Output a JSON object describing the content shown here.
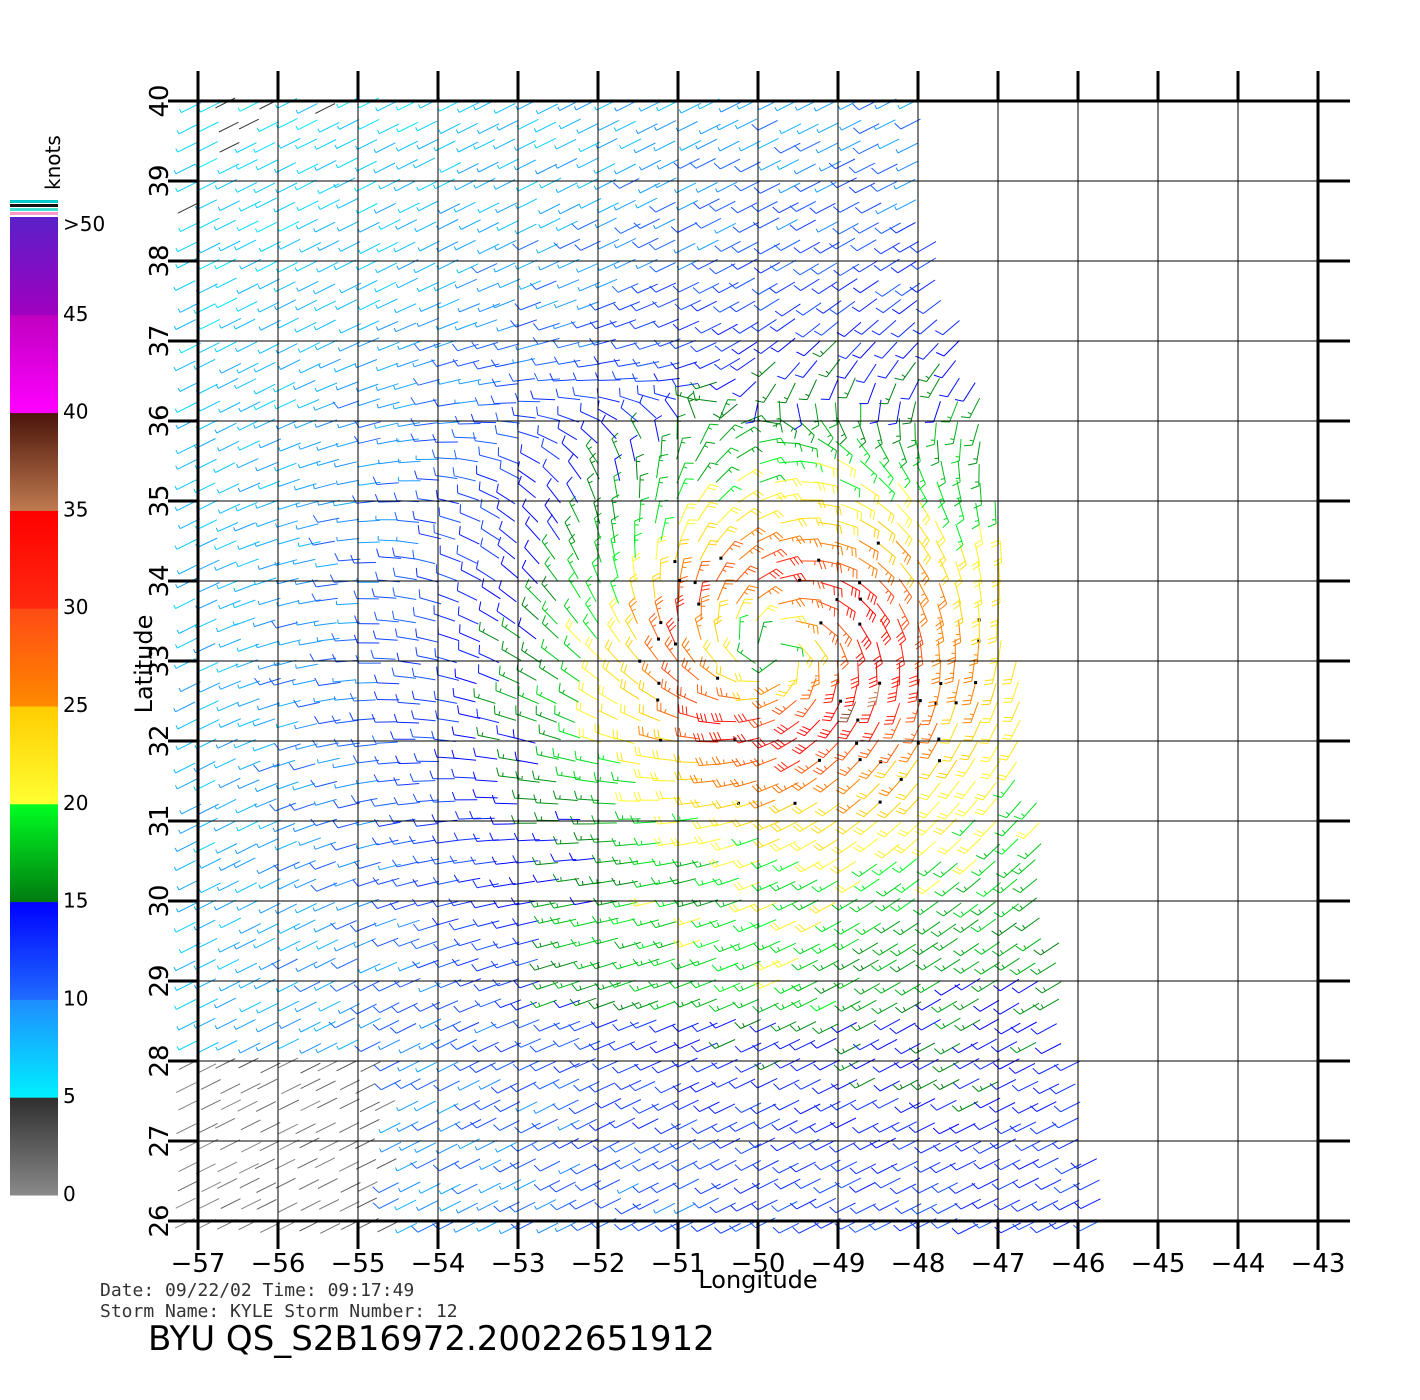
{
  "map": {
    "lon_range": [
      -57,
      -43
    ],
    "lat_range": [
      26,
      40
    ],
    "lon_ticks": [
      -57,
      -56,
      -55,
      -54,
      -53,
      -52,
      -51,
      -50,
      -49,
      -48,
      -47,
      -46,
      -45,
      -44,
      -43
    ],
    "lat_ticks": [
      26,
      27,
      28,
      29,
      30,
      31,
      32,
      33,
      34,
      35,
      36,
      37,
      38,
      39,
      40
    ],
    "lon_tick_labels": [
      "−57",
      "−56",
      "−55",
      "−54",
      "−53",
      "−52",
      "−51",
      "−50",
      "−49",
      "−48",
      "−47",
      "−46",
      "−45",
      "−44",
      "−43"
    ],
    "lat_tick_labels": [
      "26",
      "27",
      "28",
      "29",
      "30",
      "31",
      "32",
      "33",
      "34",
      "35",
      "36",
      "37",
      "38",
      "39",
      "40"
    ],
    "xlabel": "Longitude",
    "ylabel": "Latitude",
    "swath_east_edge": [
      [
        40,
        -48.0
      ],
      [
        38,
        -47.7
      ],
      [
        36,
        -47.1
      ],
      [
        34,
        -46.9
      ],
      [
        32,
        -46.6
      ],
      [
        30,
        -46.3
      ],
      [
        28,
        -46.0
      ],
      [
        26,
        -45.6
      ]
    ],
    "storm_center": {
      "lon": -49.8,
      "lat": 33.1
    },
    "eye_radius_deg": 0.35,
    "max_wind_radius_deg": 1.05
  },
  "colorbar": {
    "unit": "knots",
    "labels": [
      ">50",
      "45",
      "40",
      "35",
      "30",
      "25",
      "20",
      "15",
      "10",
      "5",
      "0"
    ],
    "label_values": [
      50,
      45,
      40,
      35,
      30,
      25,
      20,
      15,
      10,
      5,
      0
    ],
    "segments": [
      {
        "from": 0,
        "to": 5,
        "top": "#2e2e2e",
        "bottom": "#8a8a8a"
      },
      {
        "from": 5,
        "to": 10,
        "top": "#1f8cff",
        "bottom": "#00f0ff"
      },
      {
        "from": 10,
        "to": 15,
        "top": "#0000ff",
        "bottom": "#1f6cff"
      },
      {
        "from": 15,
        "to": 20,
        "top": "#00ff22",
        "bottom": "#007a10"
      },
      {
        "from": 20,
        "to": 25,
        "top": "#ffcc00",
        "bottom": "#ffff33"
      },
      {
        "from": 25,
        "to": 30,
        "top": "#ff4a14",
        "bottom": "#ff8a00"
      },
      {
        "from": 30,
        "to": 35,
        "top": "#ff0000",
        "bottom": "#ff2a10"
      },
      {
        "from": 35,
        "to": 40,
        "top": "#4a140a",
        "bottom": "#c07a50"
      },
      {
        "from": 40,
        "to": 45,
        "top": "#c000c0",
        "bottom": "#ff00ff"
      },
      {
        "from": 45,
        "to": 50,
        "top": "#5a20c8",
        "bottom": "#a000c0"
      }
    ],
    "cap_colors": [
      "#00c8c8",
      "#111111",
      "#40e0d0",
      "#ff99cc"
    ]
  },
  "footer": {
    "date_line": "Date: 09/22/02   Time: 09:17:49",
    "storm_line": "Storm  Name:  KYLE    Storm  Number:  12",
    "product_id": "BYU  QS_S2B16972.20022651912"
  }
}
